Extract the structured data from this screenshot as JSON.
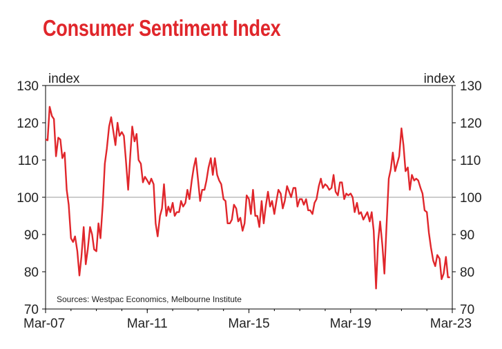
{
  "chart_data": {
    "type": "line",
    "title": "Consumer Sentiment Index",
    "ylabel_left": "index",
    "ylabel_right": "index",
    "ylim": [
      70,
      130
    ],
    "yticks": [
      70,
      80,
      90,
      100,
      110,
      120,
      130
    ],
    "xlim": [
      2007.17,
      2023.17
    ],
    "xticks": [
      {
        "x": 2007.17,
        "label": "Mar-07"
      },
      {
        "x": 2011.17,
        "label": "Mar-11"
      },
      {
        "x": 2015.17,
        "label": "Mar-15"
      },
      {
        "x": 2019.17,
        "label": "Mar-19"
      },
      {
        "x": 2023.17,
        "label": "Mar-23"
      }
    ],
    "reference_line": 100,
    "source": "Sources: Westpac Economics, Melbourne Institute",
    "series": [
      {
        "color": "#e0262b",
        "points": [
          [
            2007.17,
            115.5
          ],
          [
            2007.25,
            115.3
          ],
          [
            2007.33,
            124.3
          ],
          [
            2007.42,
            121.8
          ],
          [
            2007.5,
            121.0
          ],
          [
            2007.58,
            111.0
          ],
          [
            2007.67,
            116.0
          ],
          [
            2007.75,
            115.5
          ],
          [
            2007.83,
            110.5
          ],
          [
            2007.92,
            112.0
          ],
          [
            2008.0,
            102.0
          ],
          [
            2008.08,
            98.0
          ],
          [
            2008.17,
            89.0
          ],
          [
            2008.25,
            88.0
          ],
          [
            2008.33,
            89.5
          ],
          [
            2008.42,
            85.5
          ],
          [
            2008.5,
            79.0
          ],
          [
            2008.58,
            84.0
          ],
          [
            2008.67,
            92.0
          ],
          [
            2008.75,
            82.0
          ],
          [
            2008.83,
            86.0
          ],
          [
            2008.92,
            92.0
          ],
          [
            2009.0,
            90.0
          ],
          [
            2009.08,
            86.0
          ],
          [
            2009.17,
            85.5
          ],
          [
            2009.25,
            93.0
          ],
          [
            2009.33,
            89.0
          ],
          [
            2009.42,
            98.0
          ],
          [
            2009.5,
            109.0
          ],
          [
            2009.58,
            113.0
          ],
          [
            2009.67,
            119.0
          ],
          [
            2009.75,
            121.5
          ],
          [
            2009.83,
            118.0
          ],
          [
            2009.92,
            114.0
          ],
          [
            2010.0,
            120.0
          ],
          [
            2010.08,
            116.5
          ],
          [
            2010.17,
            117.5
          ],
          [
            2010.25,
            116.5
          ],
          [
            2010.33,
            110.0
          ],
          [
            2010.42,
            102.0
          ],
          [
            2010.5,
            111.0
          ],
          [
            2010.58,
            119.0
          ],
          [
            2010.67,
            115.0
          ],
          [
            2010.75,
            117.0
          ],
          [
            2010.83,
            110.0
          ],
          [
            2010.92,
            109.0
          ],
          [
            2011.0,
            104.0
          ],
          [
            2011.08,
            105.5
          ],
          [
            2011.17,
            104.5
          ],
          [
            2011.25,
            103.5
          ],
          [
            2011.33,
            105.0
          ],
          [
            2011.42,
            103.5
          ],
          [
            2011.5,
            93.0
          ],
          [
            2011.58,
            89.5
          ],
          [
            2011.67,
            95.0
          ],
          [
            2011.75,
            97.0
          ],
          [
            2011.83,
            103.5
          ],
          [
            2011.92,
            95.0
          ],
          [
            2012.0,
            97.5
          ],
          [
            2012.08,
            96.0
          ],
          [
            2012.17,
            98.5
          ],
          [
            2012.25,
            95.0
          ],
          [
            2012.33,
            96.0
          ],
          [
            2012.42,
            96.0
          ],
          [
            2012.5,
            99.0
          ],
          [
            2012.58,
            97.5
          ],
          [
            2012.67,
            98.5
          ],
          [
            2012.75,
            102.0
          ],
          [
            2012.83,
            99.5
          ],
          [
            2012.92,
            104.5
          ],
          [
            2013.0,
            108.0
          ],
          [
            2013.08,
            110.5
          ],
          [
            2013.17,
            104.5
          ],
          [
            2013.25,
            99.0
          ],
          [
            2013.33,
            102.0
          ],
          [
            2013.42,
            102.0
          ],
          [
            2013.5,
            104.5
          ],
          [
            2013.58,
            108.0
          ],
          [
            2013.67,
            110.5
          ],
          [
            2013.75,
            106.0
          ],
          [
            2013.83,
            110.5
          ],
          [
            2013.92,
            106.0
          ],
          [
            2014.0,
            104.5
          ],
          [
            2014.08,
            103.5
          ],
          [
            2014.17,
            99.5
          ],
          [
            2014.25,
            99.0
          ],
          [
            2014.33,
            93.0
          ],
          [
            2014.42,
            93.0
          ],
          [
            2014.5,
            94.0
          ],
          [
            2014.58,
            98.0
          ],
          [
            2014.67,
            97.0
          ],
          [
            2014.75,
            93.5
          ],
          [
            2014.83,
            94.5
          ],
          [
            2014.92,
            91.0
          ],
          [
            2015.0,
            93.0
          ],
          [
            2015.08,
            100.5
          ],
          [
            2015.17,
            99.5
          ],
          [
            2015.25,
            95.5
          ],
          [
            2015.33,
            102.0
          ],
          [
            2015.42,
            95.0
          ],
          [
            2015.5,
            95.0
          ],
          [
            2015.58,
            92.0
          ],
          [
            2015.67,
            99.0
          ],
          [
            2015.75,
            93.0
          ],
          [
            2015.83,
            97.5
          ],
          [
            2015.92,
            101.5
          ],
          [
            2016.0,
            97.5
          ],
          [
            2016.08,
            99.0
          ],
          [
            2016.17,
            95.5
          ],
          [
            2016.25,
            99.0
          ],
          [
            2016.33,
            102.0
          ],
          [
            2016.42,
            101.0
          ],
          [
            2016.5,
            97.0
          ],
          [
            2016.58,
            99.0
          ],
          [
            2016.67,
            103.0
          ],
          [
            2016.75,
            101.5
          ],
          [
            2016.83,
            100.0
          ],
          [
            2016.92,
            102.5
          ],
          [
            2017.0,
            102.5
          ],
          [
            2017.08,
            97.5
          ],
          [
            2017.17,
            99.5
          ],
          [
            2017.25,
            99.5
          ],
          [
            2017.33,
            98.0
          ],
          [
            2017.42,
            99.5
          ],
          [
            2017.5,
            96.5
          ],
          [
            2017.58,
            96.5
          ],
          [
            2017.67,
            95.5
          ],
          [
            2017.75,
            98.5
          ],
          [
            2017.83,
            99.5
          ],
          [
            2017.92,
            103.0
          ],
          [
            2018.0,
            105.0
          ],
          [
            2018.08,
            102.5
          ],
          [
            2018.17,
            103.5
          ],
          [
            2018.25,
            103.0
          ],
          [
            2018.33,
            102.0
          ],
          [
            2018.42,
            102.5
          ],
          [
            2018.5,
            106.0
          ],
          [
            2018.58,
            101.5
          ],
          [
            2018.67,
            100.5
          ],
          [
            2018.75,
            104.0
          ],
          [
            2018.83,
            104.0
          ],
          [
            2018.92,
            99.5
          ],
          [
            2019.0,
            101.0
          ],
          [
            2019.08,
            100.5
          ],
          [
            2019.17,
            101.0
          ],
          [
            2019.25,
            100.0
          ],
          [
            2019.33,
            96.0
          ],
          [
            2019.42,
            98.5
          ],
          [
            2019.5,
            95.5
          ],
          [
            2019.58,
            96.0
          ],
          [
            2019.67,
            94.0
          ],
          [
            2019.75,
            95.0
          ],
          [
            2019.83,
            96.0
          ],
          [
            2019.92,
            93.5
          ],
          [
            2020.0,
            96.0
          ],
          [
            2020.08,
            91.0
          ],
          [
            2020.17,
            75.5
          ],
          [
            2020.25,
            88.0
          ],
          [
            2020.33,
            93.5
          ],
          [
            2020.42,
            87.0
          ],
          [
            2020.5,
            79.5
          ],
          [
            2020.58,
            92.0
          ],
          [
            2020.67,
            105.0
          ],
          [
            2020.75,
            107.5
          ],
          [
            2020.83,
            112.0
          ],
          [
            2020.92,
            107.0
          ],
          [
            2021.0,
            109.0
          ],
          [
            2021.08,
            111.0
          ],
          [
            2021.17,
            118.5
          ],
          [
            2021.25,
            114.0
          ],
          [
            2021.33,
            107.0
          ],
          [
            2021.42,
            108.0
          ],
          [
            2021.5,
            102.0
          ],
          [
            2021.58,
            106.0
          ],
          [
            2021.67,
            104.5
          ],
          [
            2021.75,
            105.0
          ],
          [
            2021.83,
            104.5
          ],
          [
            2021.92,
            102.5
          ],
          [
            2022.0,
            101.0
          ],
          [
            2022.08,
            96.5
          ],
          [
            2022.17,
            96.0
          ],
          [
            2022.25,
            90.5
          ],
          [
            2022.33,
            86.5
          ],
          [
            2022.42,
            83.0
          ],
          [
            2022.5,
            81.5
          ],
          [
            2022.58,
            84.5
          ],
          [
            2022.67,
            83.5
          ],
          [
            2022.75,
            78.0
          ],
          [
            2022.83,
            79.5
          ],
          [
            2022.92,
            84.0
          ],
          [
            2023.0,
            78.5
          ],
          [
            2023.08,
            78.5
          ]
        ]
      }
    ]
  }
}
